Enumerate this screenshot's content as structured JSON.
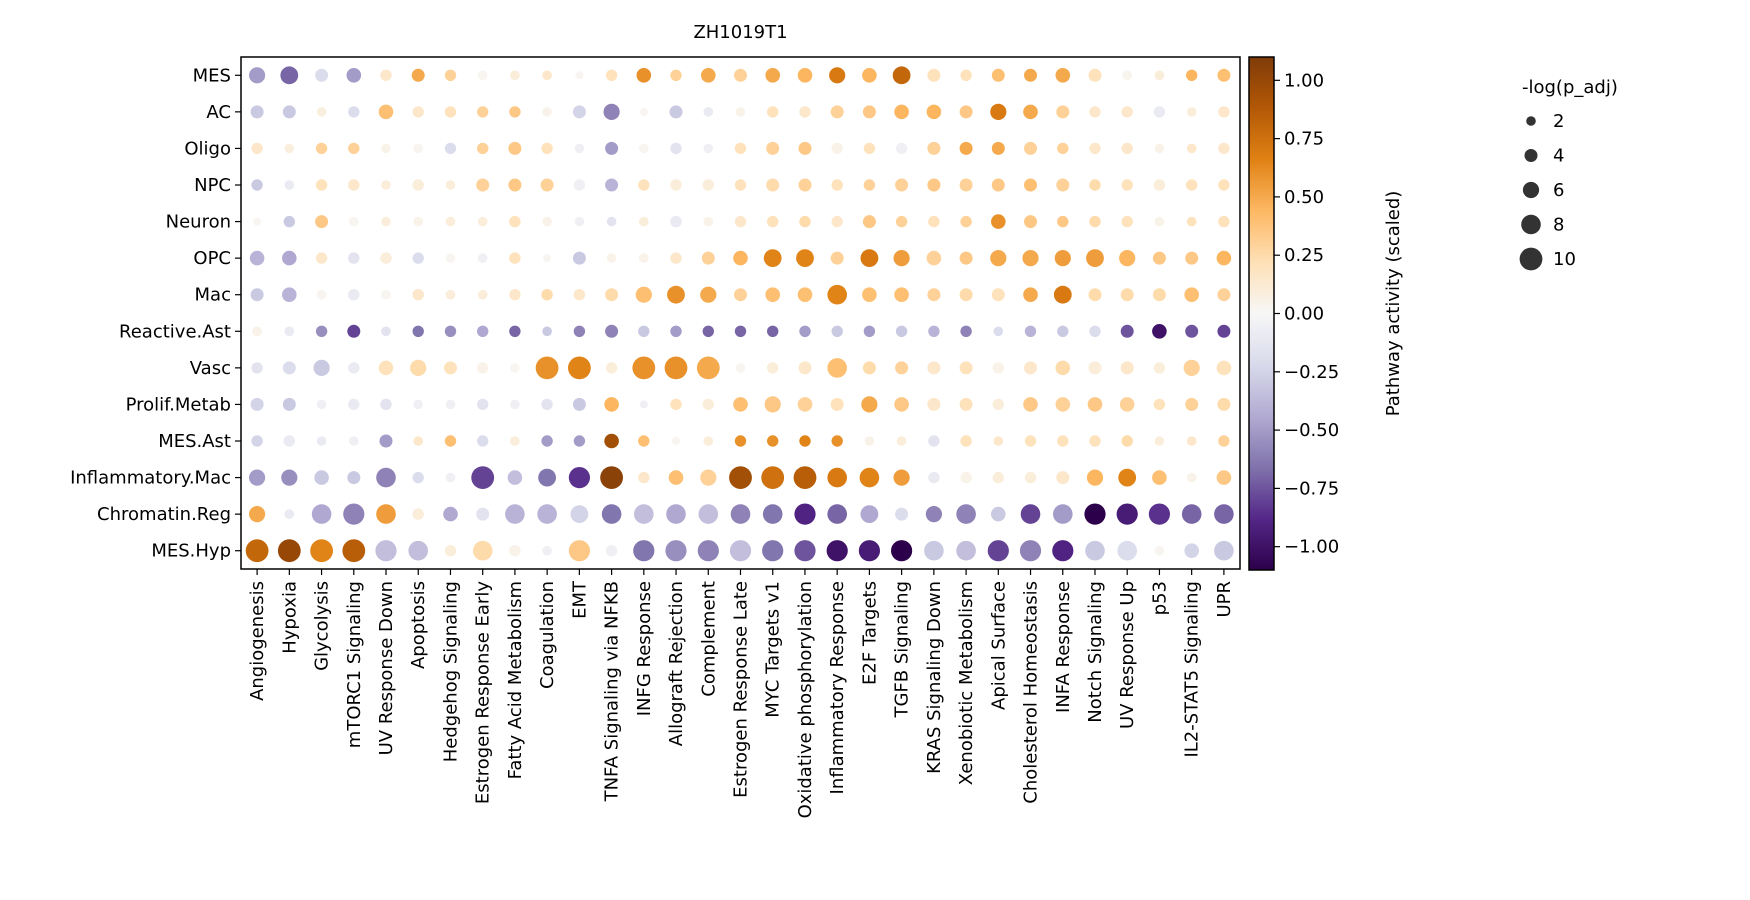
{
  "chart_data": {
    "type": "scatter",
    "title": "ZH1019T1",
    "x_categories": [
      "Angiogenesis",
      "Hypoxia",
      "Glycolysis",
      "mTORC1 Signaling",
      "UV Response Down",
      "Apoptosis",
      "Hedgehog Signaling",
      "Estrogen Response Early",
      "Fatty Acid Metabolism",
      "Coagulation",
      "EMT",
      "TNFA Signaling via NFKB",
      "INFG Response",
      "Allograft Rejection",
      "Complement",
      "Estrogen Response Late",
      "MYC Targets v1",
      "Oxidative phosphorylation",
      "Inflammatory Response",
      "E2F Targets",
      "TGFB Signaling",
      "KRAS Signaling Down",
      "Xenobiotic Metabolism",
      "Apical Surface",
      "Cholesterol Homeostasis",
      "INFA Response",
      "Notch Signaling",
      "UV Response Up",
      "p53",
      "IL2-STAT5 Signaling",
      "UPR"
    ],
    "y_categories": [
      "MES",
      "AC",
      "Oligo",
      "NPC",
      "Neuron",
      "OPC",
      "Mac",
      "Reactive.Ast",
      "Vasc",
      "Prolif.Metab",
      "MES.Ast",
      "Inflammatory.Mac",
      "Chromatin.Reg",
      "MES.Hyp"
    ],
    "activity": [
      [
        -0.5,
        -0.7,
        -0.2,
        -0.5,
        0.15,
        0.5,
        0.3,
        0.02,
        0.1,
        0.15,
        0.02,
        0.2,
        0.6,
        0.3,
        0.5,
        0.3,
        0.5,
        0.45,
        0.7,
        0.45,
        0.8,
        0.2,
        0.2,
        0.4,
        0.5,
        0.5,
        0.2,
        0.03,
        0.1,
        0.45,
        0.4
      ],
      [
        -0.3,
        -0.3,
        0.08,
        -0.2,
        0.4,
        0.15,
        0.2,
        0.3,
        0.35,
        0.05,
        -0.25,
        -0.6,
        0.02,
        -0.3,
        -0.1,
        0.05,
        0.2,
        0.15,
        0.3,
        0.35,
        0.45,
        0.45,
        0.35,
        0.7,
        0.5,
        0.3,
        0.15,
        0.15,
        -0.1,
        0.1,
        0.15
      ],
      [
        0.15,
        0.08,
        0.3,
        0.3,
        0.05,
        0.02,
        -0.2,
        0.3,
        0.35,
        0.2,
        -0.05,
        -0.5,
        0.03,
        -0.15,
        -0.05,
        0.2,
        0.3,
        0.35,
        0.05,
        0.2,
        -0.05,
        0.3,
        0.5,
        0.5,
        0.3,
        0.3,
        0.15,
        0.15,
        0.05,
        0.15,
        0.15
      ],
      [
        -0.3,
        -0.1,
        0.2,
        0.15,
        0.1,
        0.1,
        0.1,
        0.3,
        0.35,
        0.3,
        -0.05,
        -0.4,
        0.2,
        0.1,
        0.1,
        0.2,
        0.25,
        0.3,
        0.2,
        0.3,
        0.3,
        0.35,
        0.3,
        0.35,
        0.4,
        0.3,
        0.25,
        0.2,
        0.1,
        0.2,
        0.2
      ],
      [
        0.02,
        -0.3,
        0.35,
        0.02,
        0.1,
        0.05,
        0.1,
        0.1,
        0.2,
        0.05,
        -0.05,
        -0.15,
        0.1,
        -0.1,
        0.05,
        0.15,
        0.2,
        0.25,
        0.15,
        0.35,
        0.3,
        0.2,
        0.3,
        0.6,
        0.35,
        0.35,
        0.25,
        0.2,
        0.05,
        0.2,
        0.2
      ],
      [
        -0.4,
        -0.45,
        0.15,
        -0.15,
        0.1,
        -0.2,
        0.02,
        -0.05,
        0.2,
        0.02,
        -0.3,
        0.05,
        0.05,
        0.15,
        0.3,
        0.45,
        0.65,
        0.65,
        0.3,
        0.7,
        0.55,
        0.3,
        0.35,
        0.5,
        0.5,
        0.55,
        0.55,
        0.45,
        0.35,
        0.35,
        0.45
      ],
      [
        -0.3,
        -0.4,
        0.02,
        -0.1,
        0.02,
        0.15,
        0.1,
        0.1,
        0.15,
        0.25,
        0.15,
        0.25,
        0.4,
        0.6,
        0.5,
        0.3,
        0.4,
        0.4,
        0.65,
        0.4,
        0.4,
        0.3,
        0.25,
        0.2,
        0.5,
        0.7,
        0.25,
        0.25,
        0.25,
        0.4,
        0.3
      ],
      [
        0.05,
        -0.1,
        -0.55,
        -0.8,
        -0.15,
        -0.65,
        -0.55,
        -0.45,
        -0.7,
        -0.3,
        -0.6,
        -0.6,
        -0.3,
        -0.5,
        -0.7,
        -0.7,
        -0.7,
        -0.5,
        -0.3,
        -0.5,
        -0.3,
        -0.4,
        -0.6,
        -0.2,
        -0.4,
        -0.3,
        -0.2,
        -0.75,
        -1.0,
        -0.75,
        -0.8
      ],
      [
        -0.15,
        -0.2,
        -0.3,
        -0.1,
        0.2,
        0.25,
        0.2,
        0.05,
        0.02,
        0.6,
        0.65,
        0.1,
        0.6,
        0.6,
        0.5,
        0.02,
        0.1,
        0.15,
        0.4,
        0.25,
        0.3,
        0.15,
        0.2,
        0.05,
        0.15,
        0.25,
        0.1,
        0.15,
        0.1,
        0.3,
        0.2
      ],
      [
        -0.25,
        -0.3,
        -0.05,
        -0.1,
        -0.15,
        -0.05,
        -0.05,
        -0.15,
        -0.05,
        -0.15,
        -0.3,
        0.45,
        -0.05,
        0.2,
        0.1,
        0.4,
        0.35,
        0.3,
        0.2,
        0.5,
        0.35,
        0.15,
        0.2,
        0.1,
        0.35,
        0.3,
        0.35,
        0.3,
        0.2,
        0.3,
        0.25
      ],
      [
        -0.25,
        -0.1,
        -0.1,
        -0.05,
        -0.5,
        0.15,
        0.4,
        -0.2,
        0.1,
        -0.5,
        -0.5,
        0.95,
        0.4,
        0.02,
        0.1,
        0.6,
        0.6,
        0.65,
        0.6,
        0.05,
        0.1,
        -0.15,
        0.2,
        0.15,
        0.2,
        0.2,
        0.2,
        0.25,
        0.1,
        0.15,
        0.3
      ],
      [
        -0.5,
        -0.55,
        -0.3,
        -0.3,
        -0.6,
        -0.2,
        -0.05,
        -0.8,
        -0.35,
        -0.65,
        -0.85,
        1.05,
        0.15,
        0.4,
        0.3,
        0.95,
        0.75,
        0.85,
        0.7,
        0.65,
        0.55,
        -0.1,
        0.05,
        0.1,
        0.1,
        0.15,
        0.45,
        0.65,
        0.4,
        0.05,
        0.35
      ],
      [
        0.5,
        -0.1,
        -0.45,
        -0.6,
        0.55,
        0.1,
        -0.45,
        -0.15,
        -0.4,
        -0.4,
        -0.25,
        -0.65,
        -0.35,
        -0.45,
        -0.35,
        -0.6,
        -0.65,
        -0.9,
        -0.7,
        -0.45,
        -0.2,
        -0.6,
        -0.6,
        -0.3,
        -0.8,
        -0.5,
        -1.1,
        -0.95,
        -0.85,
        -0.7,
        -0.7
      ],
      [
        0.8,
        1.0,
        0.65,
        0.85,
        -0.35,
        -0.35,
        0.1,
        0.25,
        0.05,
        -0.05,
        0.35,
        -0.05,
        -0.65,
        -0.55,
        -0.6,
        -0.35,
        -0.65,
        -0.75,
        -1.0,
        -0.95,
        -1.15,
        -0.3,
        -0.35,
        -0.8,
        -0.6,
        -0.9,
        -0.3,
        -0.2,
        0.02,
        -0.25,
        -0.3
      ]
    ],
    "neg_log_p_adj": [
      [
        6,
        7,
        4,
        5,
        3,
        4,
        3,
        2,
        2,
        2,
        1,
        3,
        5,
        3,
        5,
        4,
        5,
        5,
        6,
        5,
        7,
        4,
        3,
        4,
        4,
        5,
        4,
        2,
        2,
        3,
        4
      ],
      [
        4,
        4,
        2,
        3,
        5,
        3,
        3,
        3,
        3,
        2,
        4,
        6,
        1,
        4,
        2,
        2,
        3,
        3,
        4,
        4,
        5,
        5,
        4,
        6,
        5,
        4,
        3,
        3,
        3,
        2,
        3
      ],
      [
        3,
        2,
        3,
        3,
        2,
        2,
        3,
        3,
        4,
        3,
        2,
        4,
        2,
        3,
        2,
        3,
        4,
        4,
        3,
        3,
        3,
        4,
        4,
        4,
        4,
        3,
        3,
        3,
        2,
        2,
        3
      ],
      [
        3,
        2,
        3,
        3,
        2,
        3,
        2,
        4,
        4,
        4,
        3,
        4,
        3,
        3,
        3,
        3,
        4,
        4,
        3,
        3,
        4,
        4,
        4,
        4,
        4,
        4,
        3,
        3,
        3,
        3,
        3
      ],
      [
        1,
        3,
        4,
        2,
        2,
        2,
        2,
        2,
        3,
        2,
        2,
        2,
        2,
        3,
        2,
        3,
        3,
        3,
        3,
        4,
        3,
        3,
        3,
        5,
        4,
        3,
        3,
        3,
        2,
        2,
        3
      ],
      [
        5,
        5,
        3,
        3,
        3,
        3,
        2,
        2,
        3,
        1,
        4,
        2,
        2,
        3,
        4,
        5,
        7,
        7,
        4,
        7,
        6,
        5,
        4,
        6,
        6,
        6,
        7,
        6,
        4,
        4,
        5
      ],
      [
        4,
        5,
        2,
        3,
        2,
        3,
        2,
        2,
        3,
        3,
        3,
        4,
        6,
        7,
        6,
        4,
        5,
        5,
        8,
        5,
        5,
        4,
        4,
        4,
        5,
        7,
        4,
        4,
        4,
        5,
        4
      ],
      [
        2,
        2,
        3,
        4,
        2,
        3,
        3,
        3,
        3,
        2,
        3,
        4,
        3,
        3,
        3,
        3,
        3,
        3,
        3,
        3,
        3,
        3,
        3,
        2,
        3,
        3,
        3,
        4,
        5,
        4,
        4
      ],
      [
        3,
        4,
        6,
        3,
        5,
        6,
        4,
        3,
        2,
        10,
        10,
        3,
        10,
        10,
        10,
        2,
        3,
        4,
        8,
        4,
        4,
        4,
        4,
        3,
        4,
        5,
        4,
        4,
        3,
        6,
        5
      ],
      [
        4,
        4,
        2,
        3,
        3,
        2,
        2,
        3,
        2,
        3,
        4,
        5,
        1,
        3,
        3,
        5,
        6,
        5,
        4,
        6,
        5,
        4,
        4,
        3,
        5,
        5,
        5,
        5,
        3,
        4,
        4
      ],
      [
        3,
        3,
        2,
        2,
        4,
        2,
        3,
        3,
        2,
        3,
        3,
        5,
        3,
        1,
        2,
        3,
        3,
        3,
        3,
        2,
        2,
        3,
        3,
        2,
        3,
        3,
        3,
        3,
        2,
        2,
        3
      ],
      [
        6,
        6,
        5,
        4,
        8,
        3,
        2,
        10,
        5,
        7,
        9,
        10,
        3,
        5,
        6,
        10,
        10,
        10,
        8,
        8,
        6,
        3,
        3,
        3,
        3,
        4,
        6,
        7,
        5,
        2,
        5
      ],
      [
        6,
        2,
        8,
        9,
        8,
        3,
        5,
        4,
        8,
        8,
        7,
        8,
        8,
        8,
        8,
        8,
        8,
        9,
        8,
        7,
        4,
        6,
        8,
        5,
        8,
        8,
        9,
        9,
        9,
        8,
        8
      ],
      [
        10,
        10,
        10,
        10,
        9,
        8,
        3,
        8,
        3,
        2,
        9,
        3,
        9,
        9,
        9,
        9,
        9,
        9,
        9,
        9,
        9,
        8,
        8,
        9,
        9,
        9,
        8,
        8,
        2,
        5,
        8
      ]
    ],
    "colorbar": {
      "label": "Pathway activity (scaled)",
      "vmin": -1.1,
      "vmax": 1.1,
      "ticks": [
        "1.00",
        "0.75",
        "0.50",
        "0.25",
        "0.00",
        "−0.25",
        "−0.50",
        "−0.75",
        "−1.00"
      ],
      "tick_values": [
        1.0,
        0.75,
        0.5,
        0.25,
        0.0,
        -0.25,
        -0.5,
        -0.75,
        -1.0
      ],
      "colormap": "PuOr_r"
    },
    "size_legend": {
      "title": "-log(p_adj)",
      "labels": [
        "2",
        "4",
        "6",
        "8",
        "10"
      ],
      "values": [
        2,
        4,
        6,
        8,
        10
      ]
    }
  }
}
